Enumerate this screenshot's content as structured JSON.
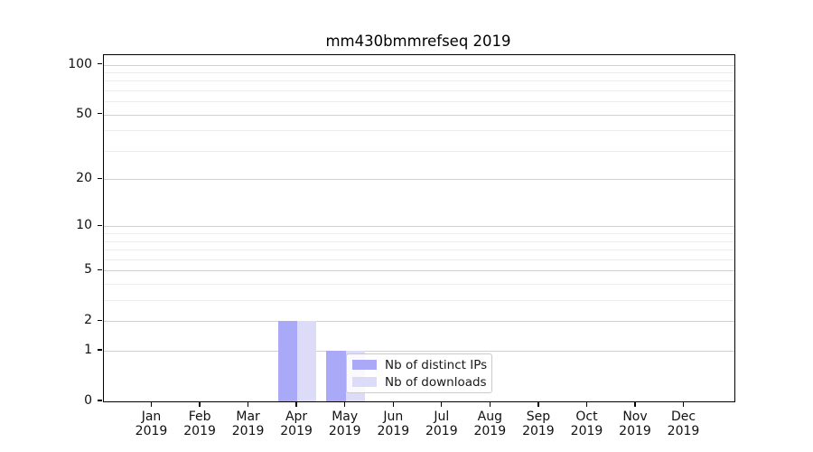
{
  "chart_data": {
    "type": "bar",
    "title": "mm430bmmrefseq 2019",
    "x_categories": [
      "Jan 2019",
      "Feb 2019",
      "Mar 2019",
      "Apr 2019",
      "May 2019",
      "Jun 2019",
      "Jul 2019",
      "Aug 2019",
      "Sep 2019",
      "Oct 2019",
      "Nov 2019",
      "Dec 2019"
    ],
    "months": [
      {
        "name": "Jan",
        "year": "2019"
      },
      {
        "name": "Feb",
        "year": "2019"
      },
      {
        "name": "Mar",
        "year": "2019"
      },
      {
        "name": "Apr",
        "year": "2019"
      },
      {
        "name": "May",
        "year": "2019"
      },
      {
        "name": "Jun",
        "year": "2019"
      },
      {
        "name": "Jul",
        "year": "2019"
      },
      {
        "name": "Aug",
        "year": "2019"
      },
      {
        "name": "Sep",
        "year": "2019"
      },
      {
        "name": "Oct",
        "year": "2019"
      },
      {
        "name": "Nov",
        "year": "2019"
      },
      {
        "name": "Dec",
        "year": "2019"
      }
    ],
    "series": [
      {
        "name": "Nb of distinct IPs",
        "color": "#a9a9f7",
        "values": [
          0,
          0,
          0,
          2,
          1,
          0,
          0,
          0,
          0,
          0,
          0,
          0
        ]
      },
      {
        "name": "Nb of downloads",
        "color": "#dcdcf8",
        "values": [
          0,
          0,
          0,
          2,
          1,
          0,
          0,
          0,
          0,
          0,
          0,
          0
        ]
      }
    ],
    "yscale": "log1p",
    "ylim": [
      0,
      113
    ],
    "y_major_ticks": [
      0,
      1,
      2,
      5,
      10,
      20,
      50,
      100
    ],
    "y_minor_ticks": [
      3,
      4,
      6,
      7,
      8,
      9,
      30,
      40,
      60,
      70,
      80,
      90
    ],
    "grid": true,
    "legend_position": "inside lower-center-left",
    "colors": {
      "grid_major": "#d0d0d0",
      "grid_minor": "#ececec",
      "axis": "#000000",
      "tick_label": "#111111"
    }
  }
}
